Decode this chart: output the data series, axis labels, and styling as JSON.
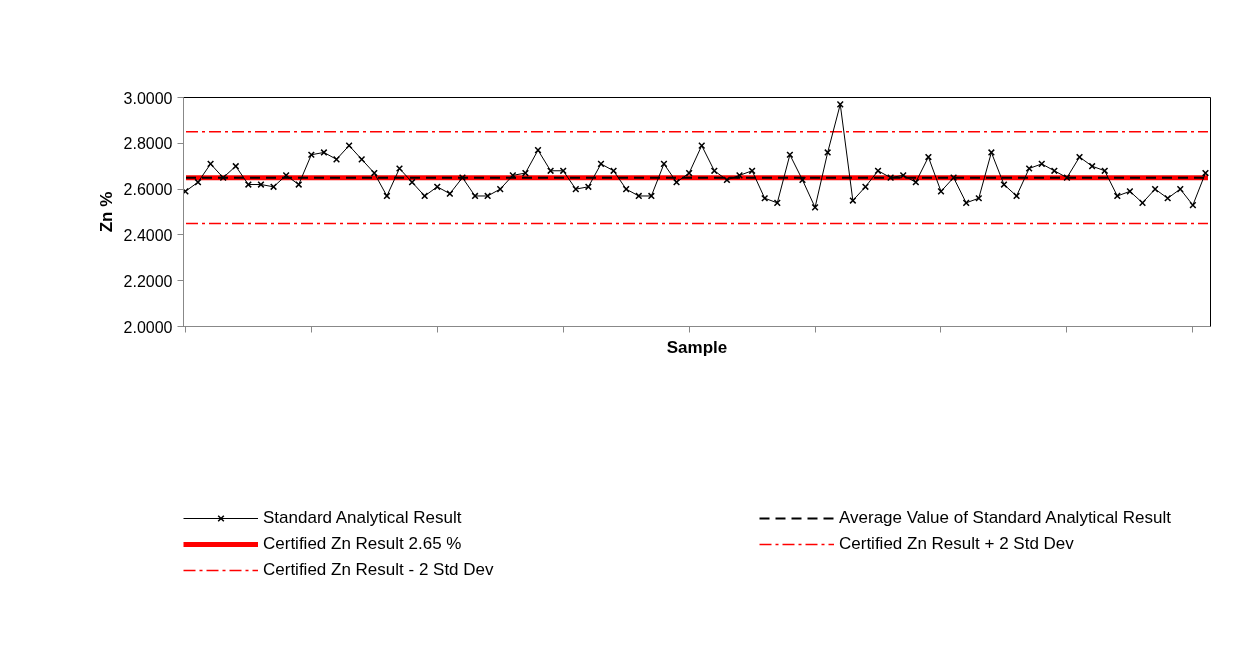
{
  "chart_data": {
    "type": "line",
    "xlabel": "Sample",
    "ylabel": "Zn %",
    "categories": [
      null,
      null,
      null,
      null,
      null,
      null,
      null,
      null,
      null,
      null,
      null,
      null,
      null,
      null,
      null,
      null,
      null,
      null,
      null,
      null,
      null,
      null,
      null,
      null,
      null,
      null,
      null,
      null,
      null,
      null,
      null,
      null,
      null,
      null,
      null,
      null,
      null,
      null,
      null,
      null,
      null,
      null,
      null,
      null,
      null,
      null,
      null,
      null,
      null,
      null,
      null,
      null,
      null,
      null,
      null,
      null,
      null,
      null,
      null,
      null,
      null,
      null,
      null,
      null,
      null,
      null,
      null,
      null,
      null,
      null,
      null,
      null,
      null,
      null,
      null,
      null,
      null,
      null,
      null,
      null,
      null,
      null
    ],
    "series": [
      {
        "name": "Standard Analytical Result",
        "color": "#000000",
        "marker": "cross",
        "values": [
          2.59,
          2.63,
          2.71,
          2.65,
          2.7,
          2.62,
          2.62,
          2.61,
          2.66,
          2.62,
          2.75,
          2.76,
          2.73,
          2.79,
          2.73,
          2.67,
          2.57,
          2.69,
          2.63,
          2.57,
          2.61,
          2.58,
          2.65,
          2.57,
          2.57,
          2.6,
          2.66,
          2.67,
          2.77,
          2.68,
          2.68,
          2.6,
          2.61,
          2.71,
          2.68,
          2.6,
          2.57,
          2.57,
          2.71,
          2.63,
          2.67,
          2.79,
          2.68,
          2.64,
          2.66,
          2.68,
          2.56,
          2.54,
          2.75,
          2.64,
          2.52,
          2.76,
          2.97,
          2.55,
          2.61,
          2.68,
          2.65,
          2.66,
          2.63,
          2.74,
          2.59,
          2.65,
          2.54,
          2.56,
          2.76,
          2.62,
          2.57,
          2.69,
          2.71,
          2.68,
          2.65,
          2.74,
          2.7,
          2.68,
          2.57,
          2.59,
          2.54,
          2.6,
          2.56,
          2.6,
          2.53,
          2.67
        ]
      }
    ],
    "ref_lines": [
      {
        "axis": "y",
        "value": 2.65,
        "label": "Average Value of Standard Analytical Result",
        "color": "#000000",
        "line_style": "dashed"
      },
      {
        "axis": "y",
        "value": 2.65,
        "label": "Certified Zn Result 2.65 %",
        "color": "#ff0000",
        "line_style": "solid"
      },
      {
        "axis": "y",
        "value": 2.85,
        "label": "Certified Zn Result + 2 Std Dev",
        "color": "#ff0000",
        "line_style": "dashdot"
      },
      {
        "axis": "y",
        "value": 2.45,
        "label": "Certified Zn Result - 2 Std Dev",
        "color": "#ff0000",
        "line_style": "dashdot"
      }
    ],
    "ylim": [
      2.0,
      3.0
    ],
    "yticks": [
      {
        "value": 2.0,
        "label": "2.0000"
      },
      {
        "value": 2.2,
        "label": "2.2000"
      },
      {
        "value": 2.4,
        "label": "2.4000"
      },
      {
        "value": 2.6,
        "label": "2.6000"
      },
      {
        "value": 2.8,
        "label": "2.8000"
      },
      {
        "value": 3.0,
        "label": "3.0000"
      }
    ],
    "tick_labels": "y",
    "grid": false,
    "legend": "bottom"
  }
}
